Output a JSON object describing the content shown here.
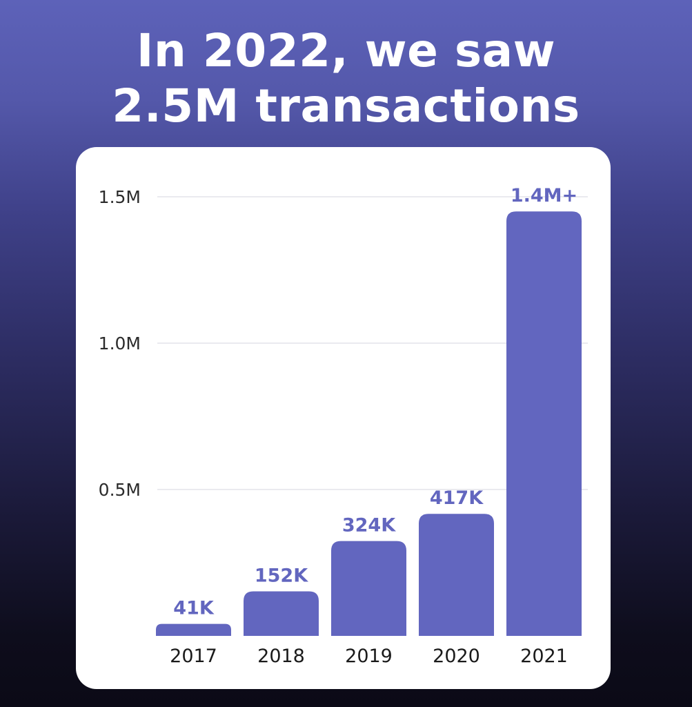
{
  "headline": {
    "line1": "In 2022, we saw",
    "line2": "2.5M transactions"
  },
  "colors": {
    "bar": "#6266bf",
    "data_label": "#6266bf",
    "card_background": "#ffffff",
    "headline_text": "#ffffff"
  },
  "chart_data": {
    "type": "bar",
    "categories": [
      "2017",
      "2018",
      "2019",
      "2020",
      "2021"
    ],
    "values": [
      41000,
      152000,
      324000,
      417000,
      1450000
    ],
    "data_labels": [
      "41K",
      "152K",
      "324K",
      "417K",
      "1.4M+"
    ],
    "ylim": [
      0,
      1500000
    ],
    "yticks": [
      500000,
      1000000,
      1500000
    ],
    "ytick_labels": [
      "0.5M",
      "1.0M",
      "1.5M"
    ],
    "grid": true,
    "legend": "none"
  }
}
